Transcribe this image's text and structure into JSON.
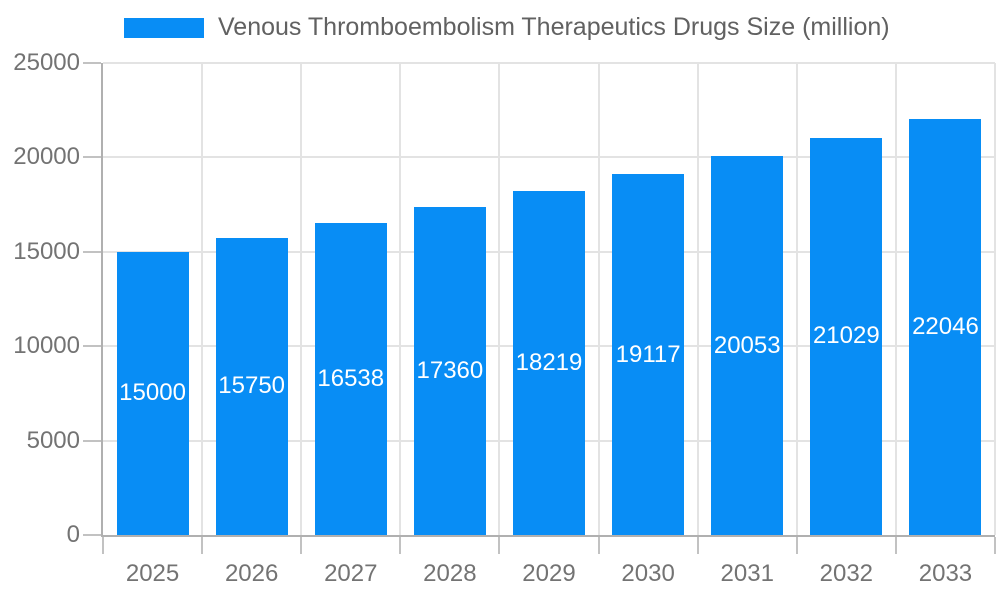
{
  "chart_data": {
    "type": "bar",
    "title": "Venous Thromboembolism Therapeutics Drugs Size (million)",
    "categories": [
      "2025",
      "2026",
      "2027",
      "2028",
      "2029",
      "2030",
      "2031",
      "2032",
      "2033"
    ],
    "values": [
      15000,
      15750,
      16538,
      17360,
      18219,
      19117,
      20053,
      21029,
      22046
    ],
    "xlabel": "",
    "ylabel": "",
    "ylim": [
      0,
      25000
    ],
    "ytick_interval": 5000,
    "yticks": [
      0,
      5000,
      10000,
      15000,
      20000,
      25000
    ],
    "grid": true,
    "legend_position": "top",
    "bar_color": "#088DF5",
    "value_label_color": "#FFFFFF"
  },
  "colors": {
    "background": "#FFFFFF",
    "bar": "#088DF5",
    "gridline": "#E3E3E3",
    "axis_line": "#B0B0B0",
    "tick": "#C2C2C2",
    "axis_label_text": "#737373",
    "legend_text": "#616161"
  }
}
